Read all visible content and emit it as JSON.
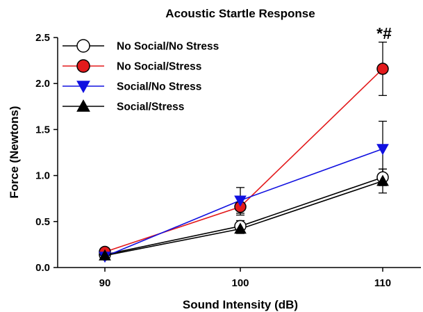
{
  "chart_data": {
    "type": "line",
    "title": "Acoustic Startle Response",
    "xlabel": "Sound Intensity (dB)",
    "ylabel": "Force (Newtons)",
    "categories": [
      "90",
      "100",
      "110"
    ],
    "ylim": [
      0,
      2.5
    ],
    "yticks": [
      "0.0",
      "0.5",
      "1.0",
      "1.5",
      "2.0",
      "2.5"
    ],
    "grid": false,
    "legend_position": "top-left",
    "series": [
      {
        "name": "No Social/No Stress",
        "color": "#000000",
        "marker": "circle",
        "fill": "#ffffff",
        "values": [
          0.14,
          0.45,
          0.98
        ],
        "errors": [
          0.03,
          0.06,
          0.09
        ]
      },
      {
        "name": "No Social/Stress",
        "color": "#e31a1c",
        "marker": "circle",
        "fill": "#e31a1c",
        "values": [
          0.17,
          0.66,
          2.16
        ],
        "errors": [
          0.03,
          0.09,
          0.29
        ]
      },
      {
        "name": "Social/No Stress",
        "color": "#1010e0",
        "marker": "triangle-down",
        "fill": "#1010e0",
        "values": [
          0.12,
          0.73,
          1.29
        ],
        "errors": [
          0.03,
          0.14,
          0.3
        ]
      },
      {
        "name": "Social/Stress",
        "color": "#000000",
        "marker": "triangle-up",
        "fill": "#000000",
        "values": [
          0.13,
          0.42,
          0.94
        ],
        "errors": [
          0.03,
          0.05,
          0.13
        ]
      }
    ],
    "annotations": [
      {
        "text": "*#",
        "x": "110",
        "y": 2.5
      }
    ]
  }
}
